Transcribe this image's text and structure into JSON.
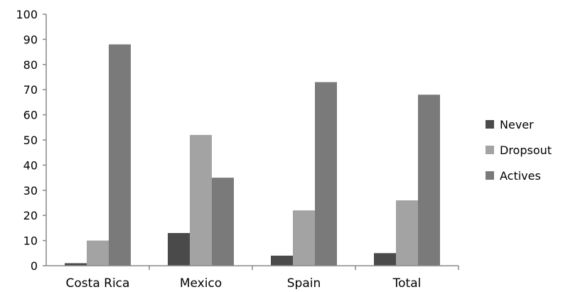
{
  "chart_data": {
    "type": "bar",
    "title": "",
    "xlabel": "",
    "ylabel": "",
    "categories": [
      "Costa Rica",
      "Mexico",
      "Spain",
      "Total"
    ],
    "series": [
      {
        "name": "Never",
        "color": "#4a4a4a",
        "values": [
          1,
          13,
          4,
          5
        ]
      },
      {
        "name": "Dropsout",
        "color": "#a3a3a3",
        "values": [
          10,
          52,
          22,
          26
        ]
      },
      {
        "name": "Actives",
        "color": "#7a7a7a",
        "values": [
          88,
          35,
          73,
          68
        ]
      }
    ],
    "ylim": [
      0,
      100
    ],
    "yticks": [
      "0",
      "10",
      "20",
      "30",
      "40",
      "50",
      "60",
      "70",
      "80",
      "90",
      "100"
    ],
    "grid": false,
    "legend_position": "right"
  }
}
